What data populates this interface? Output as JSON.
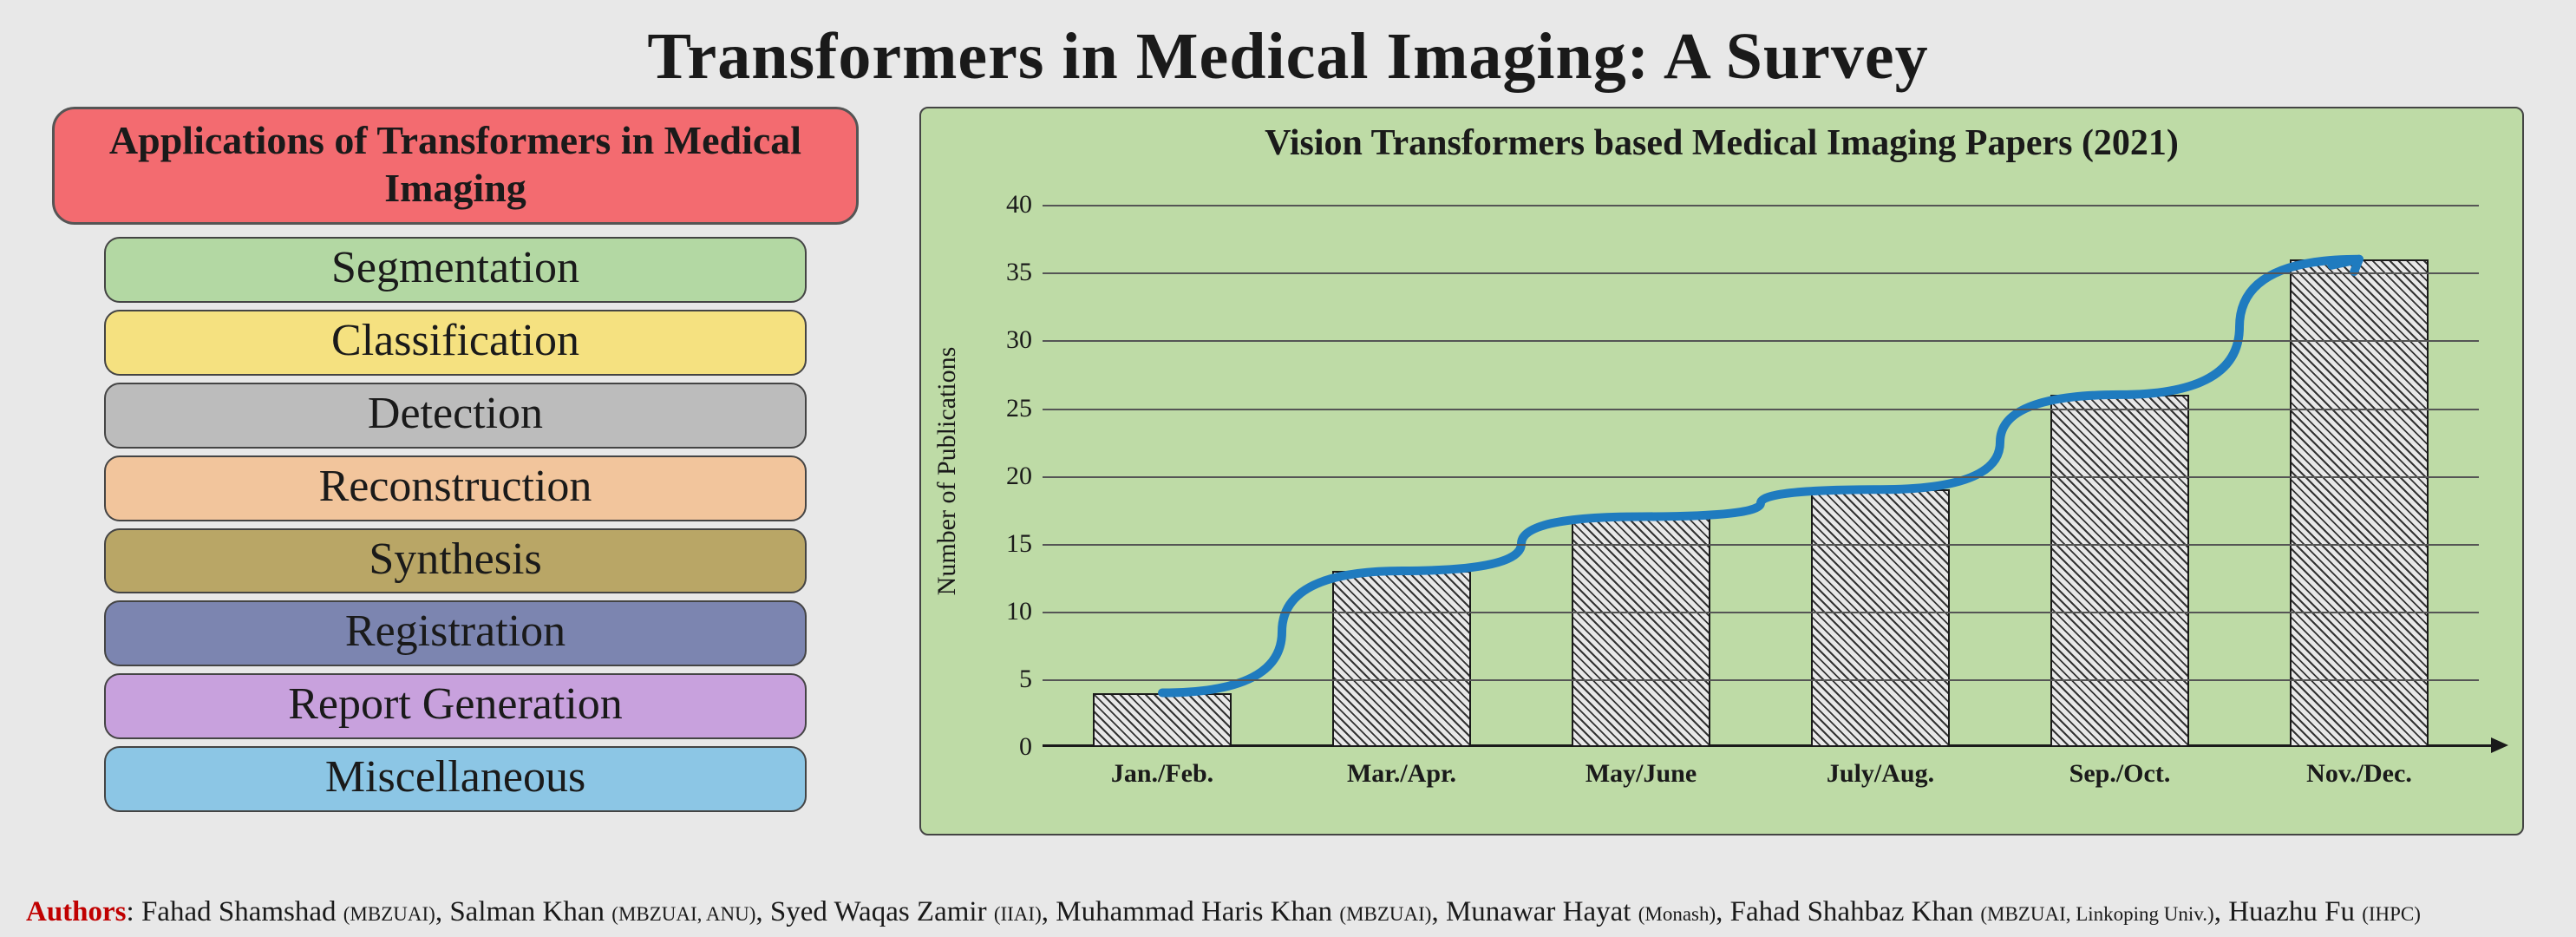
{
  "title": "Transformers in Medical Imaging: A Survey",
  "applications_header": {
    "text": "Applications of Transformers in Medical Imaging",
    "bg": "#f36b70",
    "border": "#6a6a6a"
  },
  "applications": [
    {
      "label": "Segmentation",
      "bg": "#b3d8a3"
    },
    {
      "label": "Classification",
      "bg": "#f5e180"
    },
    {
      "label": "Detection",
      "bg": "#bcbcbc"
    },
    {
      "label": "Reconstruction",
      "bg": "#f2c59c"
    },
    {
      "label": "Synthesis",
      "bg": "#b9a666"
    },
    {
      "label": "Registration",
      "bg": "#7c85b0"
    },
    {
      "label": "Report Generation",
      "bg": "#c8a1dd"
    },
    {
      "label": "Miscellaneous",
      "bg": "#8cc6e5"
    }
  ],
  "chart": {
    "title": "Vision Transformers based Medical Imaging Papers (2021)",
    "background": "#bedba6",
    "grid_color": "#555555",
    "bar_border": "#1a1a1a",
    "bar_hatch_color": "#333333",
    "bar_fill_base": "#e8e8e8",
    "trend_color": "#1f7bbf",
    "trend_width": 10,
    "y_axis": {
      "label": "Number of Publications",
      "min": 0,
      "max": 42,
      "ticks": [
        0,
        5,
        10,
        15,
        20,
        25,
        30,
        35,
        40
      ]
    },
    "categories": [
      "Jan./Feb.",
      "Mar./Apr.",
      "May/June",
      "July/Aug.",
      "Sep./Oct.",
      "Nov./Dec."
    ],
    "values": [
      4,
      13,
      17,
      19,
      26,
      36
    ]
  },
  "authors": {
    "label": "Authors",
    "list": [
      {
        "name": "Fahad Shamshad",
        "aff": "(MBZUAI)"
      },
      {
        "name": "Salman Khan",
        "aff": "(MBZUAI, ANU)"
      },
      {
        "name": "Syed Waqas Zamir",
        "aff": "(IIAI)"
      },
      {
        "name": "Muhammad Haris Khan",
        "aff": "(MBZUAI)"
      },
      {
        "name": "Munawar Hayat",
        "aff": "(Monash)"
      },
      {
        "name": "Fahad Shahbaz Khan",
        "aff": "(MBZUAI, Linkoping Univ.)"
      },
      {
        "name": "Huazhu Fu",
        "aff": "(IHPC)"
      }
    ]
  }
}
